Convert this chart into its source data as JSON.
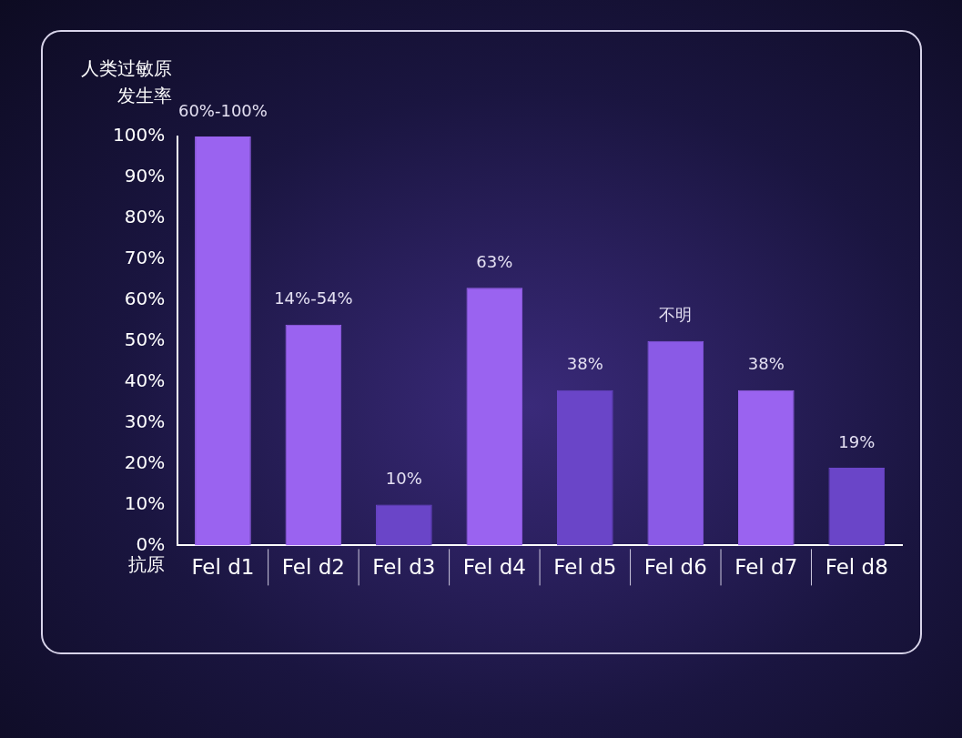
{
  "chart_data": {
    "type": "bar",
    "ylabel": "人类过敏原发生率",
    "xlabel": "抗原",
    "categories": [
      "Fel d1",
      "Fel d2",
      "Fel d3",
      "Fel d4",
      "Fel d5",
      "Fel d6",
      "Fel d7",
      "Fel d8"
    ],
    "values": [
      100,
      54,
      10,
      63,
      38,
      50,
      38,
      19
    ],
    "colors": [
      "#9a63f0",
      "#9a63f0",
      "#6a45c8",
      "#9a63f0",
      "#6a45c8",
      "#8a5ae6",
      "#9a63f0",
      "#6a45c8"
    ],
    "value_labels": [
      null,
      null,
      "10%",
      "63%",
      "38%",
      null,
      "38%",
      "19%"
    ],
    "annotations": [
      {
        "text": "60%-100%",
        "x": "Fel d1",
        "y": 100
      },
      {
        "text": "14%-54%",
        "x": "Fel d2",
        "y": 54
      },
      {
        "text": "不明",
        "x": "Fel d6",
        "y": 50
      }
    ],
    "ylim": [
      0,
      100
    ],
    "yticks": [
      {
        "value": 0,
        "label": "0%"
      },
      {
        "value": 10,
        "label": "10%"
      },
      {
        "value": 20,
        "label": "20%"
      },
      {
        "value": 30,
        "label": "30%"
      },
      {
        "value": 40,
        "label": "40%"
      },
      {
        "value": 50,
        "label": "50%"
      },
      {
        "value": 60,
        "label": "60%"
      },
      {
        "value": 70,
        "label": "70%"
      },
      {
        "value": 80,
        "label": "80%"
      },
      {
        "value": 90,
        "label": "90%"
      },
      {
        "value": 100,
        "label": "100%"
      }
    ],
    "grid": false,
    "legend": false
  }
}
